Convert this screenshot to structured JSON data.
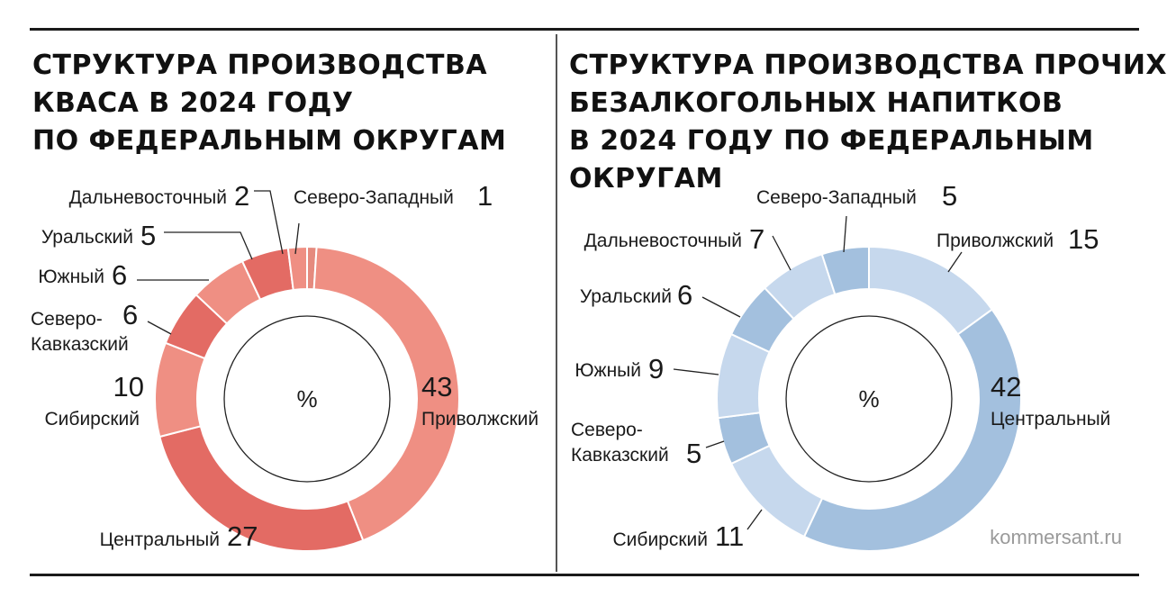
{
  "chart_data": [
    {
      "type": "pie",
      "title_lines": [
        "СТРУКТУРА ПРОИЗВОДСТВА",
        "КВАСА В 2024 ГОДУ",
        "ПО ФЕДЕРАЛЬНЫМ ОКРУГАМ"
      ],
      "center_label": "%",
      "slices": [
        {
          "label": "Северо-Западный",
          "value": 1,
          "color": "#e58a7e"
        },
        {
          "label": "Приволжский",
          "value": 43,
          "color": "#ef8f83"
        },
        {
          "label": "Центральный",
          "value": 27,
          "color": "#e36b64"
        },
        {
          "label": "Сибирский",
          "value": 10,
          "color": "#ef8f83"
        },
        {
          "label": "Северо-Кавказский",
          "value": 6,
          "color": "#e36b64"
        },
        {
          "label": "Южный",
          "value": 6,
          "color": "#ef8f83"
        },
        {
          "label": "Уральский",
          "value": 5,
          "color": "#e36b64"
        },
        {
          "label": "Дальневосточный",
          "value": 2,
          "color": "#ef8f83"
        }
      ]
    },
    {
      "type": "pie",
      "title_lines": [
        "СТРУКТУРА ПРОИЗВОДСТВА ПРОЧИХ",
        "БЕЗАЛКОГОЛЬНЫХ НАПИТКОВ",
        "В 2024 ГОДУ ПО ФЕДЕРАЛЬНЫМ",
        "ОКРУГАМ"
      ],
      "center_label": "%",
      "slices": [
        {
          "label": "Приволжский",
          "value": 15,
          "color": "#c6d8ed"
        },
        {
          "label": "Центральный",
          "value": 42,
          "color": "#a3c0de"
        },
        {
          "label": "Сибирский",
          "value": 11,
          "color": "#c6d8ed"
        },
        {
          "label": "Северо-Кавказский",
          "value": 5,
          "color": "#a3c0de"
        },
        {
          "label": "Южный",
          "value": 9,
          "color": "#c6d8ed"
        },
        {
          "label": "Уральский",
          "value": 6,
          "color": "#a3c0de"
        },
        {
          "label": "Дальневосточный",
          "value": 7,
          "color": "#c6d8ed"
        },
        {
          "label": "Северо-Западный",
          "value": 5,
          "color": "#a3c0de"
        }
      ]
    }
  ],
  "source": "kommersant.ru"
}
